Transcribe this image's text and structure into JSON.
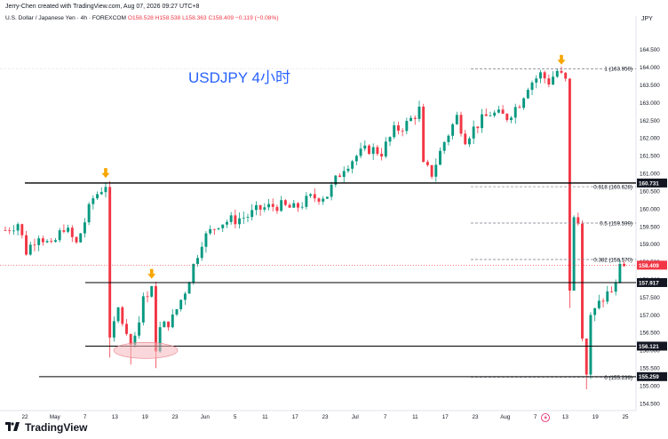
{
  "header": {
    "creator": "Jerry-Chen created with TradingView.com, Aug 07, 2026 09:27 UTC+8",
    "symbol": "U.S. Dollar / Japanese Yen · 4h · FOREXCOM",
    "open": "O158.528",
    "high": "H158.538",
    "low": "L158.363",
    "close": "C158.409",
    "change": "−0.119 (−0.08%)"
  },
  "currency": "JPY",
  "annotation_title": "USDJPY 4小时",
  "footer": {
    "brand": "TradingView"
  },
  "colors": {
    "up": "#089981",
    "down": "#f23645",
    "arrow": "#f7a600",
    "title": "#2962ff",
    "ellipse": "#f5b7bb"
  },
  "chart_data": {
    "type": "candlestick",
    "ylim": [
      154.3,
      165.2
    ],
    "y_ticks": [
      154.5,
      155.0,
      155.5,
      156.0,
      156.5,
      157.0,
      157.5,
      158.0,
      158.5,
      159.0,
      159.5,
      160.0,
      160.5,
      161.0,
      161.5,
      162.0,
      162.5,
      163.0,
      163.5,
      164.0,
      164.5
    ],
    "y_tick_labels": [
      "154.500",
      "155.000",
      "155.500",
      "156.000",
      "156.500",
      "157.000",
      "157.500",
      "158.000",
      "158.500",
      "159.000",
      "159.500",
      "160.000",
      "160.500",
      "161.000",
      "161.500",
      "162.000",
      "162.500",
      "163.000",
      "163.500",
      "164.000",
      "164.500"
    ],
    "x_labels": [
      "22",
      "May",
      "7",
      "13",
      "19",
      "23",
      "Jun",
      "5",
      "11",
      "17",
      "23",
      "Jul",
      "7",
      "11",
      "17",
      "23",
      "Aug",
      "7",
      "13",
      "19",
      "25"
    ],
    "price_path": [
      [
        0,
        159.4
      ],
      [
        3,
        159.6
      ],
      [
        5,
        158.8
      ],
      [
        8,
        159.3
      ],
      [
        11,
        158.9
      ],
      [
        14,
        159.5
      ],
      [
        17,
        159.0
      ],
      [
        21,
        160.3
      ],
      [
        24,
        160.7
      ],
      [
        25,
        156.2
      ],
      [
        27,
        157.2
      ],
      [
        30,
        156.0
      ],
      [
        33,
        157.4
      ],
      [
        35,
        157.9
      ],
      [
        36,
        155.9
      ],
      [
        37,
        156.6
      ],
      [
        40,
        156.9
      ],
      [
        43,
        157.7
      ],
      [
        47,
        159.1
      ],
      [
        51,
        159.6
      ],
      [
        55,
        159.7
      ],
      [
        58,
        159.8
      ],
      [
        61,
        160.0
      ],
      [
        65,
        160.1
      ],
      [
        69,
        160.0
      ],
      [
        73,
        160.3
      ],
      [
        77,
        160.4
      ],
      [
        81,
        161.2
      ],
      [
        84,
        161.5
      ],
      [
        87,
        161.7
      ],
      [
        90,
        161.6
      ],
      [
        93,
        162.2
      ],
      [
        96,
        162.4
      ],
      [
        99,
        162.8
      ],
      [
        100,
        161.2
      ],
      [
        102,
        161.0
      ],
      [
        105,
        161.9
      ],
      [
        108,
        162.6
      ],
      [
        110,
        162.0
      ],
      [
        113,
        162.4
      ],
      [
        116,
        162.7
      ],
      [
        120,
        162.6
      ],
      [
        123,
        163.0
      ],
      [
        125,
        163.5
      ],
      [
        128,
        163.8
      ],
      [
        130,
        163.6
      ],
      [
        132,
        163.9
      ],
      [
        134,
        163.6
      ],
      [
        135,
        157.6
      ],
      [
        136,
        159.8
      ],
      [
        137,
        159.6
      ],
      [
        138,
        156.5
      ],
      [
        139,
        155.3
      ],
      [
        140,
        156.9
      ],
      [
        142,
        157.3
      ],
      [
        144,
        157.6
      ],
      [
        146,
        157.8
      ],
      [
        147,
        158.5
      ],
      [
        148,
        158.4
      ]
    ],
    "reference_lines": [
      {
        "price": 160.731,
        "label": "160.731"
      },
      {
        "price": 157.917,
        "label": "157.917"
      },
      {
        "price": 156.121,
        "label": "156.121"
      },
      {
        "price": 155.259,
        "label": "155.259"
      }
    ],
    "fibonacci": [
      {
        "ratio": "1",
        "price": 163.959,
        "label": "1 (163.959)"
      },
      {
        "ratio": "0.618",
        "price": 160.628,
        "label": "0.618 (160.628)"
      },
      {
        "ratio": "0.5",
        "price": 159.599,
        "label": "0.5 (159.599)"
      },
      {
        "ratio": "0.382",
        "price": 158.57,
        "label": "0.382 (158.570)"
      },
      {
        "ratio": "0",
        "price": 155.239,
        "label": "0 (155.239)"
      }
    ],
    "last_price": {
      "price": 158.409,
      "label": "158.409"
    },
    "markers": [
      {
        "type": "arrow",
        "bar_index": 24,
        "price": 160.8
      },
      {
        "type": "arrow",
        "bar_index": 35,
        "price": 157.95
      },
      {
        "type": "arrow",
        "bar_index": 133,
        "price": 164.0
      }
    ],
    "zone": {
      "bar_center": 34,
      "price": 156.0
    }
  }
}
